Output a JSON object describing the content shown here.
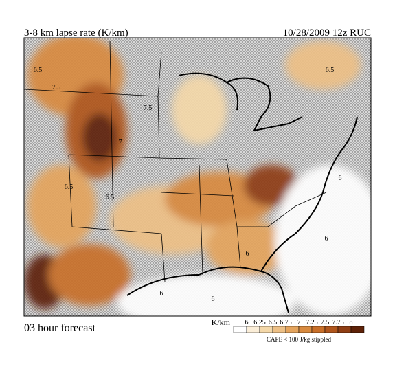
{
  "header": {
    "title": "3-8 km lapse rate (K/km)",
    "date": "10/28/2009  12z  RUC"
  },
  "footer": {
    "forecast": "03 hour forecast",
    "note": "CAPE < 100 J/kg stippled"
  },
  "legend": {
    "unit": "K/km",
    "levels": [
      6,
      6.25,
      6.5,
      6.75,
      7,
      7.25,
      7.5,
      7.75,
      8
    ],
    "colors": [
      "#ffffff",
      "#fbeed8",
      "#f4d8a9",
      "#edc086",
      "#e4a45d",
      "#d88a3f",
      "#c86f29",
      "#b0561c",
      "#8f3e14",
      "#5e2208"
    ]
  },
  "map": {
    "labels": [
      "6.5",
      "7.5",
      "7",
      "6.5",
      "7.5",
      "6.5",
      "6.5",
      "6",
      "6",
      "6",
      "6",
      "6"
    ]
  }
}
